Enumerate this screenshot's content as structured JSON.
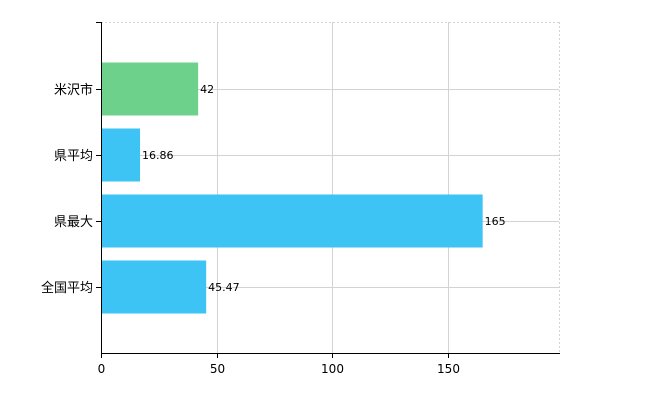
{
  "chart_data": {
    "type": "bar",
    "orientation": "horizontal",
    "categories": [
      "米沢市",
      "県平均",
      "県最大",
      "全国平均"
    ],
    "values": [
      42,
      16.86,
      165,
      45.47
    ],
    "value_labels": [
      "42",
      "16.86",
      "165",
      "45.47"
    ],
    "bar_colors": [
      "#6dd18b",
      "#3ec3f5",
      "#3ec3f5",
      "#3ec3f5"
    ],
    "xlim": [
      0,
      198
    ],
    "x_ticks": [
      0,
      50,
      100,
      150
    ],
    "x_tick_labels": [
      "0",
      "50",
      "100",
      "150"
    ],
    "grid": true,
    "title": "",
    "xlabel": "",
    "ylabel": ""
  }
}
